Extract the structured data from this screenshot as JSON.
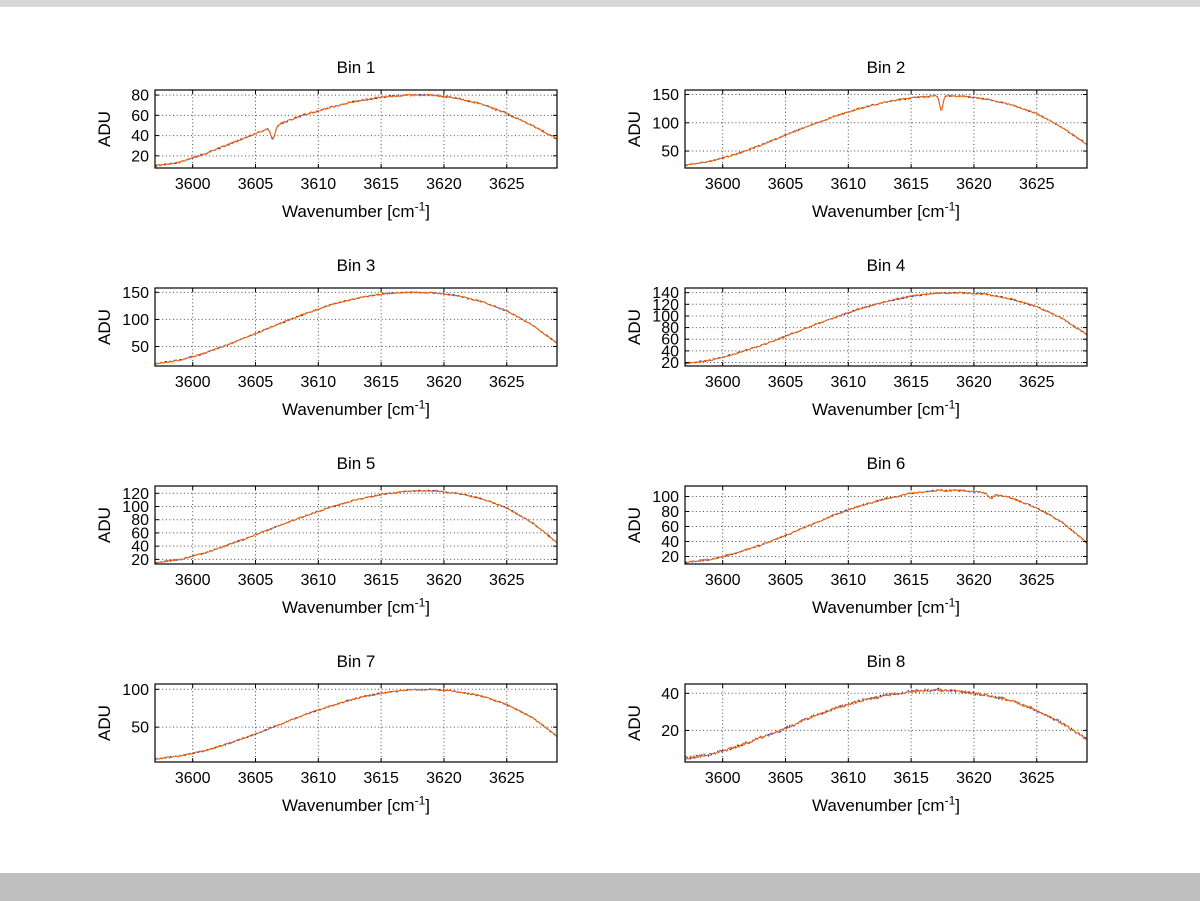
{
  "style": {
    "line_color": "#e8650f",
    "overlay_line_color": "#2a2aa0",
    "grid_color": "#4d4d4d",
    "axis_color": "#000000",
    "background": "#ffffff",
    "top_bar_color": "#d8d8d8",
    "bottom_bar_color": "#bfbfbf"
  },
  "axis_labels": {
    "ylabel": "ADU",
    "xlabel_prefix": "Wavenumber [cm",
    "xlabel_sup": "-1",
    "xlabel_suffix": "]"
  },
  "chart_data": [
    {
      "type": "line",
      "title": "Bin 1",
      "xlabel": "Wavenumber [cm^-1]",
      "ylabel": "ADU",
      "xlim": [
        3597,
        3629
      ],
      "ylim": [
        8,
        85
      ],
      "xticks": [
        3600,
        3605,
        3610,
        3615,
        3620,
        3625
      ],
      "yticks": [
        20,
        40,
        60,
        80
      ],
      "x": [
        3597,
        3599,
        3601,
        3603,
        3605,
        3607,
        3609,
        3611,
        3613,
        3615,
        3617,
        3619,
        3621,
        3623,
        3625,
        3627,
        3629
      ],
      "y": [
        10,
        14,
        22,
        32,
        42,
        52,
        61,
        68,
        74,
        78,
        80,
        80,
        77,
        71,
        62,
        50,
        37
      ],
      "dips": [
        {
          "x": 3606.4,
          "depth": 12,
          "width": 0.25
        }
      ],
      "noise": 0.8
    },
    {
      "type": "line",
      "title": "Bin 2",
      "xlabel": "Wavenumber [cm^-1]",
      "ylabel": "ADU",
      "xlim": [
        3597,
        3629
      ],
      "ylim": [
        20,
        158
      ],
      "xticks": [
        3600,
        3605,
        3610,
        3615,
        3620,
        3625
      ],
      "yticks": [
        50,
        100,
        150
      ],
      "x": [
        3597,
        3599,
        3601,
        3603,
        3605,
        3607,
        3609,
        3611,
        3613,
        3615,
        3617,
        3619,
        3621,
        3623,
        3625,
        3627,
        3629
      ],
      "y": [
        25,
        32,
        44,
        60,
        78,
        96,
        112,
        126,
        137,
        144,
        148,
        147,
        142,
        132,
        116,
        92,
        62
      ],
      "dips": [
        {
          "x": 3617.4,
          "depth": 26,
          "width": 0.18
        }
      ],
      "noise": 1.2
    },
    {
      "type": "line",
      "title": "Bin 3",
      "xlabel": "Wavenumber [cm^-1]",
      "ylabel": "ADU",
      "xlim": [
        3597,
        3629
      ],
      "ylim": [
        14,
        158
      ],
      "xticks": [
        3600,
        3605,
        3610,
        3615,
        3620,
        3625
      ],
      "yticks": [
        50,
        100,
        150
      ],
      "x": [
        3597,
        3599,
        3601,
        3603,
        3605,
        3607,
        3609,
        3611,
        3613,
        3615,
        3617,
        3619,
        3621,
        3623,
        3625,
        3627,
        3629
      ],
      "y": [
        18,
        25,
        38,
        55,
        74,
        93,
        111,
        127,
        139,
        147,
        150,
        149,
        144,
        133,
        116,
        90,
        56
      ],
      "dips": [],
      "noise": 1.2
    },
    {
      "type": "line",
      "title": "Bin 4",
      "xlabel": "Wavenumber [cm^-1]",
      "ylabel": "ADU",
      "xlim": [
        3597,
        3629
      ],
      "ylim": [
        14,
        148
      ],
      "xticks": [
        3600,
        3605,
        3610,
        3615,
        3620,
        3625
      ],
      "yticks": [
        20,
        40,
        60,
        80,
        100,
        120,
        140
      ],
      "x": [
        3597,
        3599,
        3601,
        3603,
        3605,
        3607,
        3609,
        3611,
        3613,
        3615,
        3617,
        3619,
        3621,
        3623,
        3625,
        3627,
        3629
      ],
      "y": [
        18,
        24,
        35,
        49,
        65,
        82,
        98,
        113,
        125,
        134,
        139,
        140,
        137,
        129,
        116,
        96,
        68
      ],
      "dips": [],
      "noise": 1.2
    },
    {
      "type": "line",
      "title": "Bin 5",
      "xlabel": "Wavenumber [cm^-1]",
      "ylabel": "ADU",
      "xlim": [
        3597,
        3629
      ],
      "ylim": [
        13,
        131
      ],
      "xticks": [
        3600,
        3605,
        3610,
        3615,
        3620,
        3625
      ],
      "yticks": [
        20,
        40,
        60,
        80,
        100,
        120
      ],
      "x": [
        3597,
        3599,
        3601,
        3603,
        3605,
        3607,
        3609,
        3611,
        3613,
        3615,
        3617,
        3619,
        3621,
        3623,
        3625,
        3627,
        3629
      ],
      "y": [
        15,
        20,
        30,
        43,
        57,
        72,
        86,
        99,
        110,
        118,
        123,
        124,
        120,
        112,
        98,
        76,
        45
      ],
      "dips": [],
      "noise": 1.0
    },
    {
      "type": "line",
      "title": "Bin 6",
      "xlabel": "Wavenumber [cm^-1]",
      "ylabel": "ADU",
      "xlim": [
        3597,
        3629
      ],
      "ylim": [
        10,
        114
      ],
      "xticks": [
        3600,
        3605,
        3610,
        3615,
        3620,
        3625
      ],
      "yticks": [
        20,
        40,
        60,
        80,
        100
      ],
      "x": [
        3597,
        3599,
        3601,
        3603,
        3605,
        3607,
        3609,
        3611,
        3613,
        3615,
        3617,
        3619,
        3621,
        3623,
        3625,
        3627,
        3629
      ],
      "y": [
        12,
        16,
        24,
        35,
        48,
        62,
        76,
        88,
        97,
        104,
        108,
        108,
        105,
        98,
        85,
        66,
        38
      ],
      "dips": [
        {
          "x": 3621.3,
          "depth": 6,
          "width": 0.3
        }
      ],
      "noise": 1.0
    },
    {
      "type": "line",
      "title": "Bin 7",
      "xlabel": "Wavenumber [cm^-1]",
      "ylabel": "ADU",
      "xlim": [
        3597,
        3629
      ],
      "ylim": [
        4,
        107
      ],
      "xticks": [
        3600,
        3605,
        3610,
        3615,
        3620,
        3625
      ],
      "yticks": [
        50,
        100
      ],
      "x": [
        3597,
        3599,
        3601,
        3603,
        3605,
        3607,
        3609,
        3611,
        3613,
        3615,
        3617,
        3619,
        3621,
        3623,
        3625,
        3627,
        3629
      ],
      "y": [
        8,
        12,
        19,
        29,
        41,
        54,
        67,
        78,
        88,
        95,
        99,
        100,
        97,
        91,
        80,
        63,
        38
      ],
      "dips": [],
      "noise": 0.9
    },
    {
      "type": "line",
      "title": "Bin 8",
      "xlabel": "Wavenumber [cm^-1]",
      "ylabel": "ADU",
      "xlim": [
        3597,
        3629
      ],
      "ylim": [
        3,
        45
      ],
      "xticks": [
        3600,
        3605,
        3610,
        3615,
        3620,
        3625
      ],
      "yticks": [
        20,
        40
      ],
      "x": [
        3597,
        3599,
        3601,
        3603,
        3605,
        3607,
        3609,
        3611,
        3613,
        3615,
        3617,
        3619,
        3621,
        3623,
        3625,
        3627,
        3629
      ],
      "y": [
        5,
        7,
        11,
        16,
        21,
        27,
        32,
        36,
        39,
        41,
        42,
        41,
        39,
        36,
        31,
        24,
        15
      ],
      "dips": [],
      "noise": 0.7
    }
  ]
}
